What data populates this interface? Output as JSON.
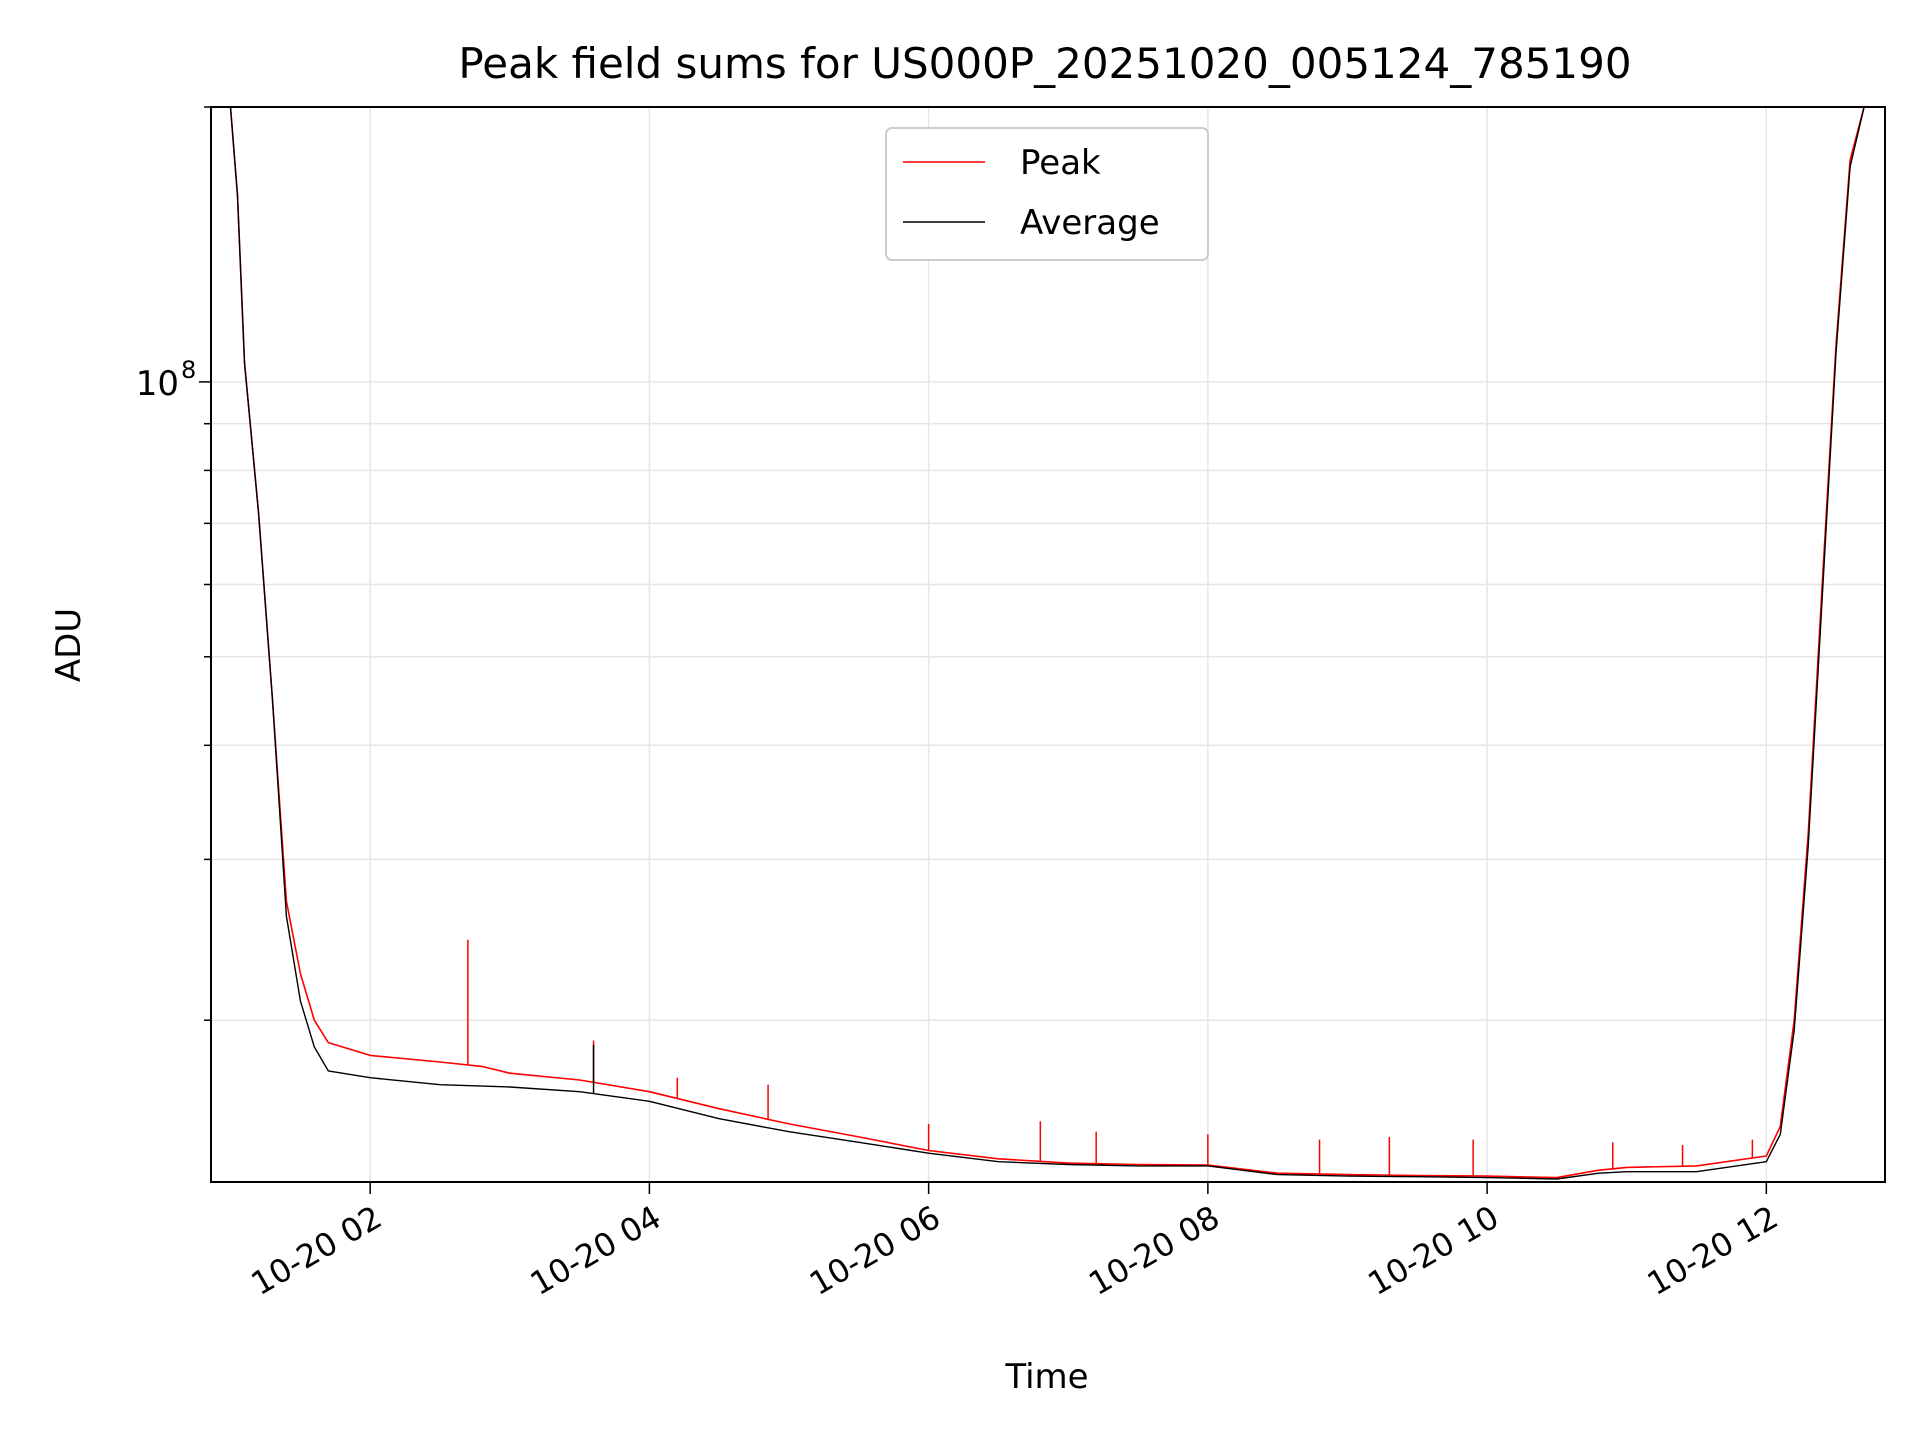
{
  "chart_data": {
    "type": "line",
    "title": "Peak field sums for US000P_20251020_005124_785190",
    "xlabel": "Time",
    "ylabel": "ADU",
    "y_scale": "log",
    "ylim": [
      13300000,
      200000000
    ],
    "xlim_hours": [
      0.86,
      12.85
    ],
    "grid": true,
    "legend_position": "top-center",
    "x_ticks": [
      {
        "hour": 2,
        "label": "10-20 02"
      },
      {
        "hour": 4,
        "label": "10-20 04"
      },
      {
        "hour": 6,
        "label": "10-20 06"
      },
      {
        "hour": 8,
        "label": "10-20 08"
      },
      {
        "hour": 10,
        "label": "10-20 10"
      },
      {
        "hour": 12,
        "label": "10-20 12"
      }
    ],
    "y_major_tick": {
      "value": 100000000,
      "base": "10",
      "exponent": "8"
    },
    "y_minor_ticks": [
      20000000,
      30000000,
      40000000,
      50000000,
      60000000,
      70000000,
      80000000,
      90000000,
      200000000
    ],
    "series": [
      {
        "name": "Peak",
        "color": "#ff0000",
        "points": [
          [
            0.86,
            210000000
          ],
          [
            1.0,
            210000000
          ],
          [
            1.05,
            160000000
          ],
          [
            1.1,
            105000000
          ],
          [
            1.2,
            72000000
          ],
          [
            1.3,
            45000000
          ],
          [
            1.4,
            27000000
          ],
          [
            1.5,
            22500000
          ],
          [
            1.6,
            20000000
          ],
          [
            1.7,
            18900000
          ],
          [
            2.0,
            18300000
          ],
          [
            2.5,
            18000000
          ],
          [
            2.8,
            17800000
          ],
          [
            3.0,
            17500000
          ],
          [
            3.5,
            17200000
          ],
          [
            4.0,
            16700000
          ],
          [
            4.5,
            16000000
          ],
          [
            5.0,
            15400000
          ],
          [
            5.5,
            14900000
          ],
          [
            6.0,
            14400000
          ],
          [
            6.5,
            14100000
          ],
          [
            7.0,
            13950000
          ],
          [
            7.5,
            13900000
          ],
          [
            8.0,
            13880000
          ],
          [
            8.5,
            13600000
          ],
          [
            9.0,
            13550000
          ],
          [
            9.5,
            13520000
          ],
          [
            10.0,
            13500000
          ],
          [
            10.5,
            13450000
          ],
          [
            10.8,
            13700000
          ],
          [
            11.0,
            13800000
          ],
          [
            11.5,
            13850000
          ],
          [
            12.0,
            14200000
          ],
          [
            12.1,
            15300000
          ],
          [
            12.2,
            20000000
          ],
          [
            12.3,
            32000000
          ],
          [
            12.4,
            60000000
          ],
          [
            12.5,
            110000000
          ],
          [
            12.6,
            175000000
          ],
          [
            12.7,
            210000000
          ],
          [
            12.85,
            210000000
          ]
        ],
        "spikes": [
          [
            2.7,
            24500000
          ],
          [
            3.6,
            19000000
          ],
          [
            4.2,
            17300000
          ],
          [
            4.85,
            17000000
          ],
          [
            6.0,
            15400000
          ],
          [
            6.8,
            15500000
          ],
          [
            7.2,
            15100000
          ],
          [
            8.0,
            15000000
          ],
          [
            8.8,
            14800000
          ],
          [
            9.3,
            14900000
          ],
          [
            9.9,
            14800000
          ],
          [
            10.9,
            14700000
          ],
          [
            11.4,
            14600000
          ],
          [
            11.9,
            14800000
          ]
        ]
      },
      {
        "name": "Average",
        "color": "#000000",
        "points": [
          [
            0.86,
            210000000
          ],
          [
            1.0,
            210000000
          ],
          [
            1.05,
            160000000
          ],
          [
            1.1,
            105000000
          ],
          [
            1.2,
            72000000
          ],
          [
            1.3,
            45000000
          ],
          [
            1.4,
            26000000
          ],
          [
            1.5,
            21000000
          ],
          [
            1.6,
            18700000
          ],
          [
            1.7,
            17600000
          ],
          [
            2.0,
            17300000
          ],
          [
            2.5,
            17000000
          ],
          [
            3.0,
            16900000
          ],
          [
            3.5,
            16700000
          ],
          [
            4.0,
            16300000
          ],
          [
            4.5,
            15600000
          ],
          [
            5.0,
            15100000
          ],
          [
            5.5,
            14700000
          ],
          [
            6.0,
            14300000
          ],
          [
            6.5,
            14000000
          ],
          [
            7.0,
            13900000
          ],
          [
            7.5,
            13850000
          ],
          [
            8.0,
            13850000
          ],
          [
            8.5,
            13550000
          ],
          [
            9.0,
            13500000
          ],
          [
            9.5,
            13480000
          ],
          [
            10.0,
            13450000
          ],
          [
            10.5,
            13400000
          ],
          [
            10.8,
            13600000
          ],
          [
            11.0,
            13650000
          ],
          [
            11.5,
            13650000
          ],
          [
            12.0,
            14000000
          ],
          [
            12.1,
            15000000
          ],
          [
            12.2,
            19500000
          ],
          [
            12.3,
            31000000
          ],
          [
            12.4,
            58000000
          ],
          [
            12.5,
            108000000
          ],
          [
            12.6,
            172000000
          ],
          [
            12.7,
            210000000
          ],
          [
            12.85,
            210000000
          ]
        ],
        "spikes": [
          [
            3.6,
            18800000
          ]
        ]
      }
    ]
  }
}
